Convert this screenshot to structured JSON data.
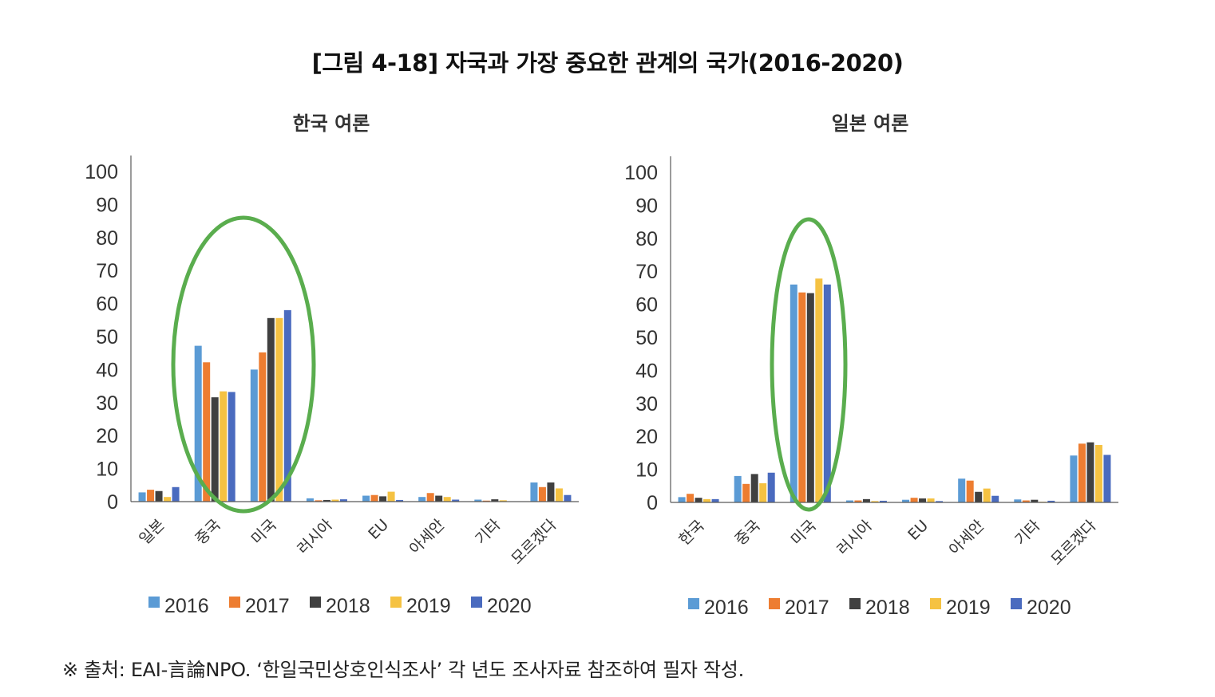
{
  "figure_title": "[그림 4-18] 자국과 가장 중요한 관계의 국가(2016-2020)",
  "source_note": "※ 출처: EAI-言論NPO. ‘한일국민상호인식조사’ 각 년도 조사자료 참조하여 필자 작성.",
  "colors": {
    "2016": "#5b9bd5",
    "2017": "#ed7d31",
    "2018": "#404040",
    "2019": "#f5c242",
    "2020": "#4a6bbf",
    "highlight_ellipse": "#5aad4e",
    "axis": "#595959"
  },
  "chart_data": [
    {
      "type": "bar",
      "title": "한국 여론",
      "categories": [
        "일본",
        "중국",
        "미국",
        "러시아",
        "EU",
        "아세안",
        "기타",
        "모르겠다"
      ],
      "ylim": [
        0,
        100
      ],
      "yticks": [
        "0",
        "10",
        "20",
        "30",
        "40",
        "50",
        "60",
        "70",
        "80",
        "90",
        "100"
      ],
      "grid": false,
      "legend_position": "bottom",
      "highlight": [
        "중국",
        "미국"
      ],
      "series": [
        {
          "name": "2016",
          "values": [
            2.8,
            47.2,
            40.0,
            1.0,
            1.8,
            1.4,
            0.6,
            5.8
          ]
        },
        {
          "name": "2017",
          "values": [
            3.6,
            42.2,
            45.2,
            0.4,
            2.0,
            2.6,
            0.3,
            4.4
          ]
        },
        {
          "name": "2018",
          "values": [
            3.2,
            31.6,
            55.6,
            0.5,
            1.6,
            1.8,
            0.7,
            5.8
          ]
        },
        {
          "name": "2019",
          "values": [
            1.4,
            33.4,
            55.6,
            0.6,
            3.0,
            1.4,
            0.4,
            4.0
          ]
        },
        {
          "name": "2020",
          "values": [
            4.4,
            33.2,
            58.0,
            0.7,
            0.5,
            0.6,
            0.1,
            2.0
          ]
        }
      ]
    },
    {
      "type": "bar",
      "title": "일본 여론",
      "categories": [
        "한국",
        "중국",
        "미국",
        "러시아",
        "EU",
        "아세안",
        "기타",
        "모르겠다"
      ],
      "ylim": [
        0,
        100
      ],
      "yticks": [
        "0",
        "10",
        "20",
        "30",
        "40",
        "50",
        "60",
        "70",
        "80",
        "90",
        "100"
      ],
      "grid": false,
      "legend_position": "bottom",
      "highlight": [
        "미국"
      ],
      "series": [
        {
          "name": "2016",
          "values": [
            1.6,
            8.0,
            66.0,
            0.6,
            0.8,
            7.2,
            0.9,
            14.2
          ]
        },
        {
          "name": "2017",
          "values": [
            2.6,
            5.6,
            63.6,
            0.6,
            1.4,
            6.6,
            0.6,
            17.8
          ]
        },
        {
          "name": "2018",
          "values": [
            1.4,
            8.6,
            63.4,
            1.0,
            1.2,
            3.2,
            0.8,
            18.2
          ]
        },
        {
          "name": "2019",
          "values": [
            1.0,
            5.8,
            67.8,
            0.4,
            1.2,
            4.2,
            0.2,
            17.4
          ]
        },
        {
          "name": "2020",
          "values": [
            1.0,
            9.0,
            66.0,
            0.5,
            0.4,
            2.0,
            0.5,
            14.4
          ]
        }
      ]
    }
  ]
}
